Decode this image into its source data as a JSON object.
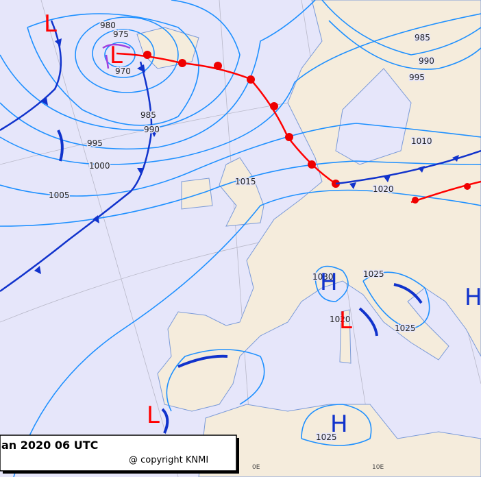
{
  "isobar_labels": [
    "980",
    "975",
    "970",
    "985",
    "990",
    "995",
    "1000",
    "1005",
    "1015",
    "1020",
    "1010",
    "995",
    "990",
    "985",
    "1030",
    "1025",
    "1020",
    "1025",
    "1025"
  ],
  "pressure_centers": [
    "L",
    "L",
    "H",
    "L",
    "H",
    "L",
    "H"
  ],
  "meridian_labels": [
    "0E",
    "10E"
  ],
  "footer": {
    "time": "an 2020 06 UTC",
    "copyright": "@ copyright KNMI"
  }
}
